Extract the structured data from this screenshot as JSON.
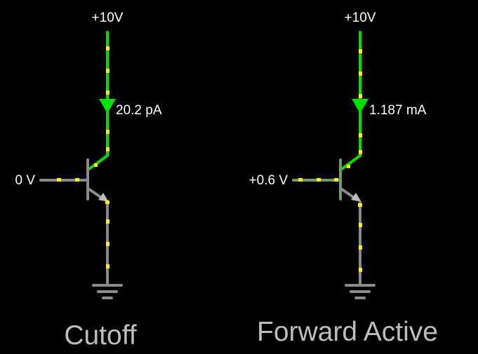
{
  "circuits": [
    {
      "id": "cutoff",
      "supply_label": "+10V",
      "current_label": "20.2 pA",
      "base_voltage_label": "0 V",
      "mode_caption": "Cutoff",
      "collector_wire_color": "#00e000",
      "base_wire_color": "#8a8a8a",
      "emitter_wire_color": "#8a8a8a"
    },
    {
      "id": "forward-active",
      "supply_label": "+10V",
      "current_label": "1.187 mA",
      "base_voltage_label": "+0.6 V",
      "mode_caption": "Forward Active",
      "collector_wire_color": "#00e000",
      "base_wire_color": "#6f9a6c",
      "emitter_wire_color": "#8a8a8a"
    }
  ],
  "colors": {
    "background": "#000000",
    "current_dot": "#ffee00",
    "arrow": "#00e000",
    "text": "#ffffff",
    "caption": "#bdbdbd"
  }
}
